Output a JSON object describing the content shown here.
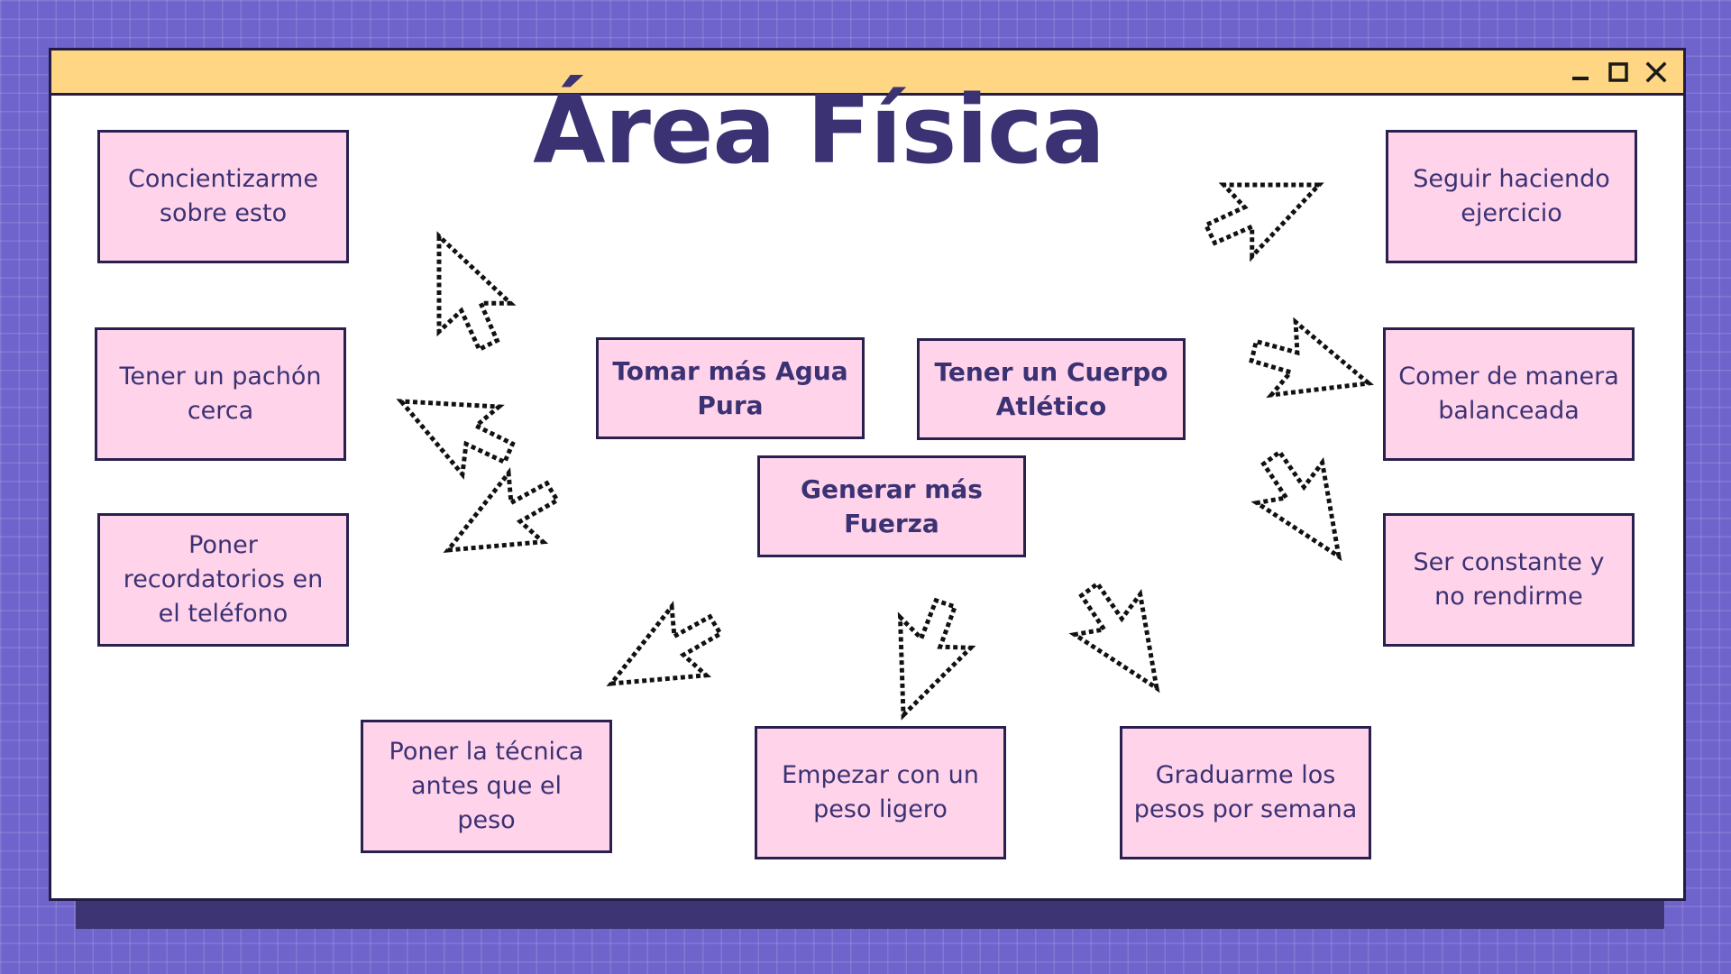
{
  "window": {
    "controls": [
      "minimize-icon",
      "maximize-icon",
      "close-icon"
    ]
  },
  "title": "Área Física",
  "center_goals": [
    "Tomar más Agua\nPura",
    "Tener un Cuerpo\nAtlético",
    "Generar más\nFuerza"
  ],
  "actions": {
    "left": [
      "Concientizarme\nsobre esto",
      "Tener un pachón\ncerca",
      "Poner\nrecordatorios en\nel teléfono"
    ],
    "right": [
      "Seguir haciendo\nejercicio",
      "Comer de manera\nbalanceada",
      "Ser constante y\nno rendirme"
    ],
    "bottom": [
      "Poner la técnica\nantes que el\npeso",
      "Empezar con un\npeso ligero",
      "Graduarme los\npesos por semana"
    ]
  },
  "icons": {
    "cursor": "pixel-arrow-cursor-icon"
  },
  "colors": {
    "background": "#6f64cc",
    "titlebar": "#ffd683",
    "box_fill": "#ffd3ea",
    "text": "#3b3274",
    "outline": "#241c44"
  }
}
